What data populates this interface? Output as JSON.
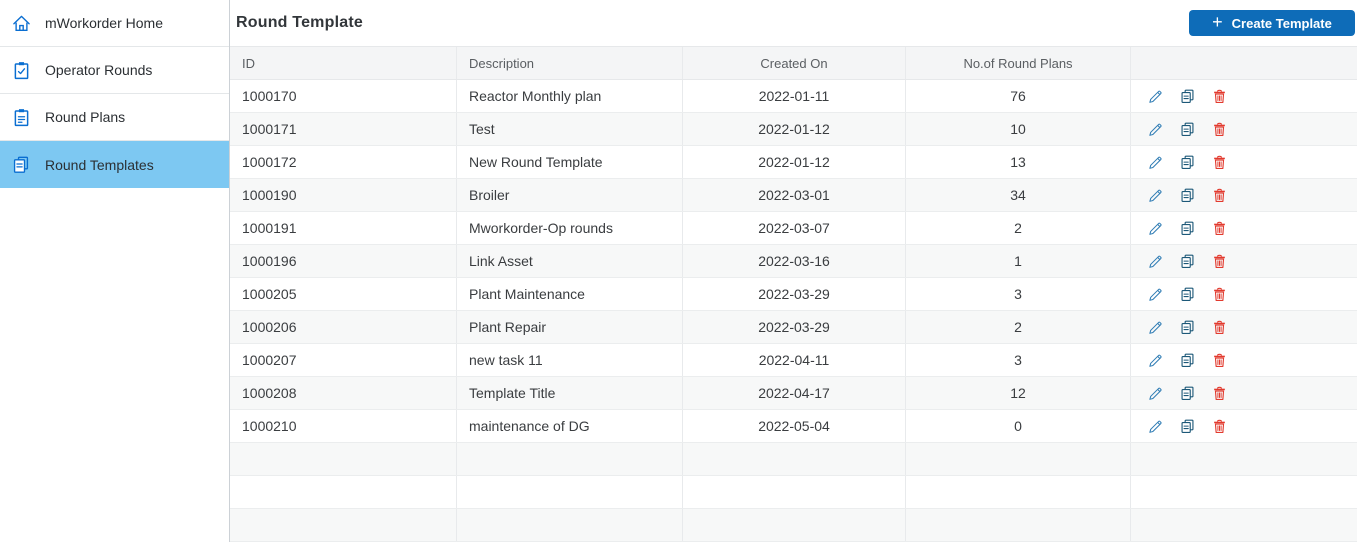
{
  "sidebar": {
    "items": [
      {
        "label": "mWorkorder Home",
        "icon": "home-icon",
        "selected": false
      },
      {
        "label": "Operator Rounds",
        "icon": "operator-rounds-icon",
        "selected": false
      },
      {
        "label": "Round Plans",
        "icon": "round-plans-icon",
        "selected": false
      },
      {
        "label": "Round Templates",
        "icon": "round-templates-icon",
        "selected": true
      }
    ]
  },
  "header": {
    "title": "Round Template",
    "create_button": {
      "label": "Create Template",
      "icon": "plus-icon"
    }
  },
  "table": {
    "columns": [
      {
        "key": "id",
        "label": "ID"
      },
      {
        "key": "description",
        "label": "Description"
      },
      {
        "key": "created_on",
        "label": "Created On"
      },
      {
        "key": "plans",
        "label": "No.of Round Plans"
      },
      {
        "key": "actions",
        "label": ""
      }
    ],
    "rows": [
      {
        "id": "1000170",
        "description": "Reactor Monthly plan",
        "created_on": "2022-01-11",
        "plans": "76"
      },
      {
        "id": "1000171",
        "description": "Test",
        "created_on": "2022-01-12",
        "plans": "10"
      },
      {
        "id": "1000172",
        "description": "New Round Template",
        "created_on": "2022-01-12",
        "plans": "13"
      },
      {
        "id": "1000190",
        "description": "Broiler",
        "created_on": "2022-03-01",
        "plans": "34"
      },
      {
        "id": "1000191",
        "description": "Mworkorder-Op rounds",
        "created_on": "2022-03-07",
        "plans": "2"
      },
      {
        "id": "1000196",
        "description": "Link Asset",
        "created_on": "2022-03-16",
        "plans": "1"
      },
      {
        "id": "1000205",
        "description": "Plant Maintenance",
        "created_on": "2022-03-29",
        "plans": "3"
      },
      {
        "id": "1000206",
        "description": "Plant Repair",
        "created_on": "2022-03-29",
        "plans": "2"
      },
      {
        "id": "1000207",
        "description": "new task 11",
        "created_on": "2022-04-11",
        "plans": "3"
      },
      {
        "id": "1000208",
        "description": "Template Title",
        "created_on": "2022-04-17",
        "plans": "12"
      },
      {
        "id": "1000210",
        "description": "maintenance of DG",
        "created_on": "2022-05-04",
        "plans": "0"
      }
    ],
    "row_actions": [
      "edit",
      "copy",
      "delete"
    ],
    "empty_row_count": 3
  },
  "colors": {
    "primary_button_blue": "#0e6cb8",
    "sidebar_selected_blue": "#7dc8f2",
    "sidebar_icon_blue": "#0a6ed1",
    "edit_icon_blue": "#2f7cb4",
    "copy_icon_blue": "#1c5878",
    "delete_icon_red": "#e23a2e",
    "header_bg": "#f4f5f6",
    "zebra_row_bg": "#f7f8f8",
    "border_gray": "#e8eaec",
    "title_text": "#32363a",
    "cell_text": "#3a3d40"
  }
}
